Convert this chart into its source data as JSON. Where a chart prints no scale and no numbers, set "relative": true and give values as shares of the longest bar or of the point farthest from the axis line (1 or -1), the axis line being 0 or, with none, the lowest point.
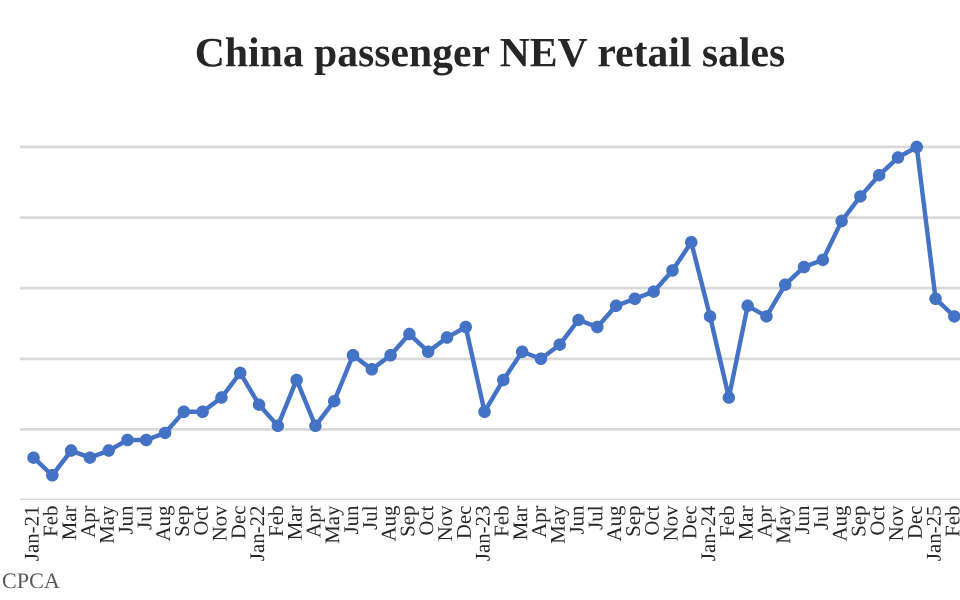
{
  "chart_data": {
    "type": "line",
    "title": "China passenger NEV retail sales",
    "relative": true,
    "grid": "y",
    "tick_labels": "x",
    "marker": "circle",
    "line_style": "solid",
    "categories": [
      "Jan-21",
      "Feb",
      "Mar",
      "Apr",
      "May",
      "Jun",
      "Jul",
      "Aug",
      "Sep",
      "Oct",
      "Nov",
      "Dec",
      "Jan-22",
      "Feb",
      "Mar",
      "Apr",
      "May",
      "Jun",
      "Jul",
      "Aug",
      "Sep",
      "Oct",
      "Nov",
      "Dec",
      "Jan-23",
      "Feb",
      "Mar",
      "Apr",
      "May",
      "Jun",
      "Jul",
      "Aug",
      "Sep",
      "Oct",
      "Nov",
      "Dec",
      "Jan-24",
      "Feb",
      "Mar",
      "Apr",
      "May",
      "Jun",
      "Jul",
      "Aug",
      "Sep",
      "Oct",
      "Nov",
      "Dec",
      "Jan-25",
      "Feb"
    ],
    "series": [
      {
        "color": "#4472c4",
        "values": [
          0.12,
          0.07,
          0.14,
          0.12,
          0.14,
          0.17,
          0.17,
          0.19,
          0.25,
          0.25,
          0.29,
          0.36,
          0.27,
          0.21,
          0.34,
          0.21,
          0.28,
          0.41,
          0.37,
          0.41,
          0.47,
          0.42,
          0.46,
          0.49,
          0.25,
          0.34,
          0.42,
          0.4,
          0.44,
          0.51,
          0.49,
          0.55,
          0.57,
          0.59,
          0.65,
          0.73,
          0.52,
          0.29,
          0.55,
          0.52,
          0.61,
          0.66,
          0.68,
          0.79,
          0.86,
          0.92,
          0.97,
          1,
          0.57,
          0.52
        ]
      }
    ],
    "annotations": [
      "CPCA"
    ]
  }
}
